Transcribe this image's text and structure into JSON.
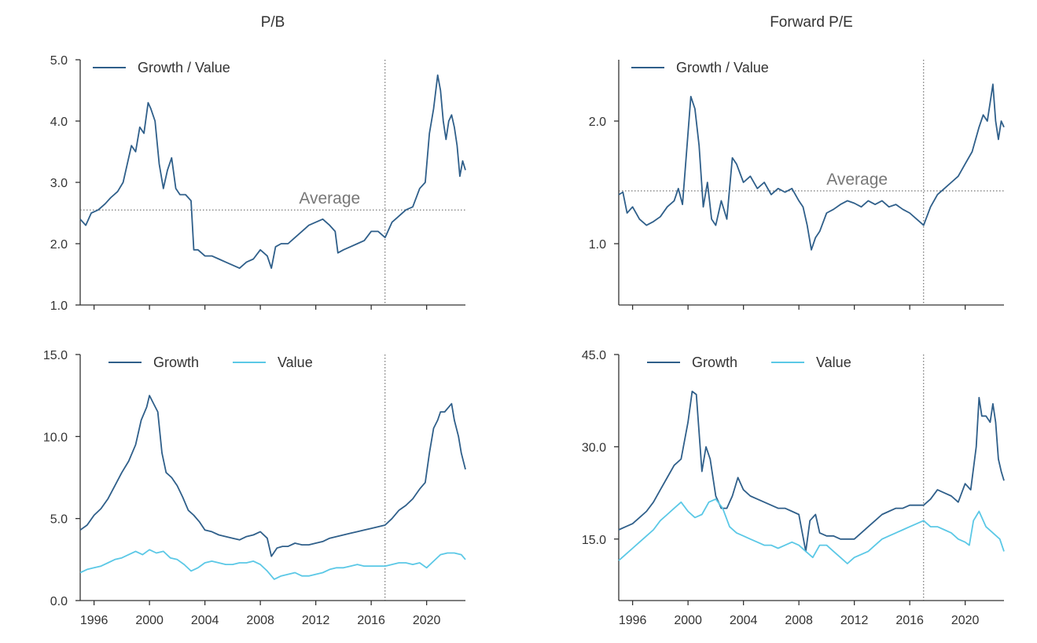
{
  "colors": {
    "growth": "#2f5f8a",
    "value": "#5bc8e6",
    "axis": "#333333",
    "reference": "#555555"
  },
  "chart_data": [
    {
      "id": "pb-ratio",
      "type": "line",
      "title": "P/B",
      "xlim": [
        1995.0,
        2022.8
      ],
      "ylim": [
        1.0,
        5.0
      ],
      "xticks": [
        1996,
        2000,
        2004,
        2008,
        2012,
        2016,
        2020
      ],
      "xtick_labels": [
        "",
        "",
        "",
        "",
        "",
        "",
        ""
      ],
      "yticks": [
        1.0,
        2.0,
        3.0,
        4.0,
        5.0
      ],
      "ytick_labels": [
        "1.0",
        "2.0",
        "3.0",
        "4.0",
        "5.0"
      ],
      "vline_x": 2017.0,
      "average": {
        "value": 2.55,
        "label": "Average",
        "label_x": 2013.0
      },
      "legend": "top-left",
      "series": [
        {
          "name": "Growth / Value",
          "color": "#2f5f8a",
          "x": [
            1995.0,
            1995.4,
            1995.8,
            1996.3,
            1996.8,
            1997.2,
            1997.7,
            1998.1,
            1998.4,
            1998.7,
            1999.0,
            1999.3,
            1999.6,
            1999.9,
            2000.1,
            2000.4,
            2000.7,
            2001.0,
            2001.3,
            2001.6,
            2001.9,
            2002.2,
            2002.6,
            2003.0,
            2003.2,
            2003.5,
            2004.0,
            2004.5,
            2005.0,
            2005.5,
            2006.0,
            2006.5,
            2007.0,
            2007.5,
            2008.0,
            2008.5,
            2008.8,
            2009.1,
            2009.5,
            2010.0,
            2010.5,
            2011.0,
            2011.5,
            2012.0,
            2012.5,
            2013.0,
            2013.4,
            2013.6,
            2014.0,
            2014.5,
            2015.0,
            2015.5,
            2016.0,
            2016.5,
            2017.0,
            2017.5,
            2018.0,
            2018.5,
            2019.0,
            2019.5,
            2019.9,
            2020.2,
            2020.5,
            2020.8,
            2021.0,
            2021.2,
            2021.4,
            2021.6,
            2021.8,
            2022.0,
            2022.2,
            2022.4,
            2022.6,
            2022.8
          ],
          "y": [
            2.4,
            2.3,
            2.5,
            2.55,
            2.65,
            2.75,
            2.85,
            3.0,
            3.3,
            3.6,
            3.5,
            3.9,
            3.8,
            4.3,
            4.2,
            4.0,
            3.3,
            2.9,
            3.2,
            3.4,
            2.9,
            2.8,
            2.8,
            2.7,
            1.9,
            1.9,
            1.8,
            1.8,
            1.75,
            1.7,
            1.65,
            1.6,
            1.7,
            1.75,
            1.9,
            1.8,
            1.6,
            1.95,
            2.0,
            2.0,
            2.1,
            2.2,
            2.3,
            2.35,
            2.4,
            2.3,
            2.2,
            1.85,
            1.9,
            1.95,
            2.0,
            2.05,
            2.2,
            2.2,
            2.1,
            2.35,
            2.45,
            2.55,
            2.6,
            2.9,
            3.0,
            3.8,
            4.2,
            4.75,
            4.5,
            4.0,
            3.7,
            4.0,
            4.1,
            3.9,
            3.6,
            3.1,
            3.35,
            3.2
          ]
        }
      ]
    },
    {
      "id": "forward-pe-ratio",
      "type": "line",
      "title": "Forward P/E",
      "xlim": [
        1995.0,
        2022.8
      ],
      "ylim": [
        0.5,
        2.5
      ],
      "xticks": [
        1996,
        2000,
        2004,
        2008,
        2012,
        2016,
        2020
      ],
      "xtick_labels": [
        "",
        "",
        "",
        "",
        "",
        "",
        ""
      ],
      "yticks": [
        1.0,
        2.0
      ],
      "ytick_labels": [
        "1.0",
        "2.0"
      ],
      "vline_x": 2017.0,
      "average": {
        "value": 1.43,
        "label": "Average",
        "label_x": 2012.2
      },
      "legend": "top-left",
      "series": [
        {
          "name": "Growth / Value",
          "color": "#2f5f8a",
          "x": [
            1995.0,
            1995.3,
            1995.6,
            1996.0,
            1996.5,
            1997.0,
            1997.5,
            1998.0,
            1998.5,
            1999.0,
            1999.3,
            1999.6,
            2000.0,
            2000.2,
            2000.5,
            2000.8,
            2001.1,
            2001.4,
            2001.7,
            2002.0,
            2002.4,
            2002.8,
            2003.2,
            2003.5,
            2004.0,
            2004.5,
            2005.0,
            2005.5,
            2006.0,
            2006.5,
            2007.0,
            2007.5,
            2008.0,
            2008.3,
            2008.6,
            2008.9,
            2009.2,
            2009.5,
            2010.0,
            2010.5,
            2011.0,
            2011.5,
            2012.0,
            2012.5,
            2013.0,
            2013.5,
            2014.0,
            2014.5,
            2015.0,
            2015.5,
            2016.0,
            2016.5,
            2017.0,
            2017.5,
            2018.0,
            2018.5,
            2019.0,
            2019.5,
            2020.0,
            2020.5,
            2021.0,
            2021.3,
            2021.6,
            2021.8,
            2022.0,
            2022.2,
            2022.4,
            2022.6,
            2022.8
          ],
          "y": [
            1.4,
            1.42,
            1.25,
            1.3,
            1.2,
            1.15,
            1.18,
            1.22,
            1.3,
            1.35,
            1.45,
            1.32,
            1.9,
            2.2,
            2.1,
            1.8,
            1.3,
            1.5,
            1.2,
            1.15,
            1.35,
            1.2,
            1.7,
            1.65,
            1.5,
            1.55,
            1.45,
            1.5,
            1.4,
            1.45,
            1.42,
            1.45,
            1.35,
            1.3,
            1.15,
            0.95,
            1.05,
            1.1,
            1.25,
            1.28,
            1.32,
            1.35,
            1.33,
            1.3,
            1.35,
            1.32,
            1.35,
            1.3,
            1.32,
            1.28,
            1.25,
            1.2,
            1.15,
            1.3,
            1.4,
            1.45,
            1.5,
            1.55,
            1.65,
            1.75,
            1.95,
            2.05,
            2.0,
            2.15,
            2.3,
            2.0,
            1.85,
            2.0,
            1.95
          ]
        }
      ]
    },
    {
      "id": "pb-levels",
      "type": "line",
      "title": "",
      "xlim": [
        1995.0,
        2022.8
      ],
      "ylim": [
        0.0,
        15.0
      ],
      "xticks": [
        1996,
        2000,
        2004,
        2008,
        2012,
        2016,
        2020
      ],
      "xtick_labels": [
        "1996",
        "2000",
        "2004",
        "2008",
        "2012",
        "2016",
        "2020"
      ],
      "yticks": [
        0.0,
        5.0,
        10.0,
        15.0
      ],
      "ytick_labels": [
        "0.0",
        "5.0",
        "10.0",
        "15.0"
      ],
      "vline_x": 2017.0,
      "legend": "top-left",
      "series": [
        {
          "name": "Growth",
          "color": "#2f5f8a",
          "x": [
            1995.0,
            1995.5,
            1996.0,
            1996.5,
            1997.0,
            1997.5,
            1998.0,
            1998.5,
            1999.0,
            1999.4,
            1999.8,
            2000.0,
            2000.3,
            2000.6,
            2000.9,
            2001.2,
            2001.6,
            2002.0,
            2002.4,
            2002.8,
            2003.2,
            2003.6,
            2004.0,
            2004.5,
            2005.0,
            2005.5,
            2006.0,
            2006.5,
            2007.0,
            2007.5,
            2008.0,
            2008.5,
            2008.8,
            2009.2,
            2009.6,
            2010.0,
            2010.5,
            2011.0,
            2011.5,
            2012.0,
            2012.5,
            2013.0,
            2013.5,
            2014.0,
            2014.5,
            2015.0,
            2015.5,
            2016.0,
            2016.5,
            2017.0,
            2017.5,
            2018.0,
            2018.5,
            2019.0,
            2019.5,
            2019.9,
            2020.2,
            2020.5,
            2020.8,
            2021.0,
            2021.3,
            2021.6,
            2021.8,
            2022.0,
            2022.3,
            2022.5,
            2022.8
          ],
          "y": [
            4.3,
            4.6,
            5.2,
            5.6,
            6.2,
            7.0,
            7.8,
            8.5,
            9.5,
            11.0,
            11.8,
            12.5,
            12.0,
            11.5,
            9.0,
            7.8,
            7.5,
            7.0,
            6.3,
            5.5,
            5.2,
            4.8,
            4.3,
            4.2,
            4.0,
            3.9,
            3.8,
            3.7,
            3.9,
            4.0,
            4.2,
            3.8,
            2.7,
            3.2,
            3.3,
            3.3,
            3.5,
            3.4,
            3.4,
            3.5,
            3.6,
            3.8,
            3.9,
            4.0,
            4.1,
            4.2,
            4.3,
            4.4,
            4.5,
            4.6,
            5.0,
            5.5,
            5.8,
            6.2,
            6.8,
            7.2,
            9.0,
            10.5,
            11.0,
            11.5,
            11.5,
            11.8,
            12.0,
            11.0,
            10.0,
            9.0,
            8.0
          ]
        },
        {
          "name": "Value",
          "color": "#5bc8e6",
          "x": [
            1995.0,
            1995.5,
            1996.0,
            1996.5,
            1997.0,
            1997.5,
            1998.0,
            1998.5,
            1999.0,
            1999.5,
            2000.0,
            2000.5,
            2001.0,
            2001.5,
            2002.0,
            2002.5,
            2003.0,
            2003.5,
            2004.0,
            2004.5,
            2005.0,
            2005.5,
            2006.0,
            2006.5,
            2007.0,
            2007.5,
            2008.0,
            2008.5,
            2009.0,
            2009.5,
            2010.0,
            2010.5,
            2011.0,
            2011.5,
            2012.0,
            2012.5,
            2013.0,
            2013.5,
            2014.0,
            2014.5,
            2015.0,
            2015.5,
            2016.0,
            2016.5,
            2017.0,
            2017.5,
            2018.0,
            2018.5,
            2019.0,
            2019.5,
            2020.0,
            2020.5,
            2021.0,
            2021.5,
            2022.0,
            2022.5,
            2022.8
          ],
          "y": [
            1.7,
            1.9,
            2.0,
            2.1,
            2.3,
            2.5,
            2.6,
            2.8,
            3.0,
            2.8,
            3.1,
            2.9,
            3.0,
            2.6,
            2.5,
            2.2,
            1.8,
            2.0,
            2.3,
            2.4,
            2.3,
            2.2,
            2.2,
            2.3,
            2.3,
            2.4,
            2.2,
            1.8,
            1.3,
            1.5,
            1.6,
            1.7,
            1.5,
            1.5,
            1.6,
            1.7,
            1.9,
            2.0,
            2.0,
            2.1,
            2.2,
            2.1,
            2.1,
            2.1,
            2.1,
            2.2,
            2.3,
            2.3,
            2.2,
            2.3,
            2.0,
            2.4,
            2.8,
            2.9,
            2.9,
            2.8,
            2.5
          ]
        }
      ]
    },
    {
      "id": "forward-pe-levels",
      "type": "line",
      "title": "",
      "xlim": [
        1995.0,
        2022.8
      ],
      "ylim": [
        5.0,
        45.0
      ],
      "xticks": [
        1996,
        2000,
        2004,
        2008,
        2012,
        2016,
        2020
      ],
      "xtick_labels": [
        "1996",
        "2000",
        "2004",
        "2008",
        "2012",
        "2016",
        "2020"
      ],
      "yticks": [
        15.0,
        30.0,
        45.0
      ],
      "ytick_labels": [
        "15.0",
        "30.0",
        "45.0"
      ],
      "vline_x": 2017.0,
      "legend": "top-left",
      "series": [
        {
          "name": "Growth",
          "color": "#2f5f8a",
          "x": [
            1995.0,
            1995.5,
            1996.0,
            1996.5,
            1997.0,
            1997.5,
            1998.0,
            1998.5,
            1999.0,
            1999.5,
            2000.0,
            2000.3,
            2000.6,
            2001.0,
            2001.3,
            2001.6,
            2002.0,
            2002.4,
            2002.8,
            2003.2,
            2003.6,
            2004.0,
            2004.5,
            2005.0,
            2005.5,
            2006.0,
            2006.5,
            2007.0,
            2007.5,
            2008.0,
            2008.5,
            2008.8,
            2009.2,
            2009.5,
            2010.0,
            2010.5,
            2011.0,
            2011.5,
            2012.0,
            2012.5,
            2013.0,
            2013.5,
            2014.0,
            2014.5,
            2015.0,
            2015.5,
            2016.0,
            2016.5,
            2017.0,
            2017.5,
            2018.0,
            2018.5,
            2019.0,
            2019.5,
            2020.0,
            2020.4,
            2020.8,
            2021.0,
            2021.2,
            2021.5,
            2021.8,
            2022.0,
            2022.2,
            2022.4,
            2022.6,
            2022.8
          ],
          "y": [
            16.5,
            17.0,
            17.5,
            18.5,
            19.5,
            21.0,
            23.0,
            25.0,
            27.0,
            28.0,
            34.0,
            39.0,
            38.5,
            26.0,
            30.0,
            28.0,
            22.0,
            20.0,
            20.0,
            22.0,
            25.0,
            23.0,
            22.0,
            21.5,
            21.0,
            20.5,
            20.0,
            20.0,
            19.5,
            19.0,
            13.0,
            18.0,
            19.0,
            16.0,
            15.5,
            15.5,
            15.0,
            15.0,
            15.0,
            16.0,
            17.0,
            18.0,
            19.0,
            19.5,
            20.0,
            20.0,
            20.5,
            20.5,
            20.5,
            21.5,
            23.0,
            22.5,
            22.0,
            21.0,
            24.0,
            23.0,
            30.0,
            38.0,
            35.0,
            35.0,
            34.0,
            37.0,
            34.0,
            28.0,
            26.0,
            24.5
          ]
        },
        {
          "name": "Value",
          "color": "#5bc8e6",
          "x": [
            1995.0,
            1995.5,
            1996.0,
            1996.5,
            1997.0,
            1997.5,
            1998.0,
            1998.5,
            1999.0,
            1999.5,
            2000.0,
            2000.5,
            2001.0,
            2001.5,
            2002.0,
            2002.5,
            2003.0,
            2003.5,
            2004.0,
            2004.5,
            2005.0,
            2005.5,
            2006.0,
            2006.5,
            2007.0,
            2007.5,
            2008.0,
            2008.5,
            2009.0,
            2009.5,
            2010.0,
            2010.5,
            2011.0,
            2011.5,
            2012.0,
            2012.5,
            2013.0,
            2013.5,
            2014.0,
            2014.5,
            2015.0,
            2015.5,
            2016.0,
            2016.5,
            2017.0,
            2017.5,
            2018.0,
            2018.5,
            2019.0,
            2019.5,
            2020.0,
            2020.3,
            2020.6,
            2021.0,
            2021.5,
            2022.0,
            2022.5,
            2022.8
          ],
          "y": [
            11.5,
            12.5,
            13.5,
            14.5,
            15.5,
            16.5,
            18.0,
            19.0,
            20.0,
            21.0,
            19.5,
            18.5,
            19.0,
            21.0,
            21.5,
            20.0,
            17.0,
            16.0,
            15.5,
            15.0,
            14.5,
            14.0,
            14.0,
            13.5,
            14.0,
            14.5,
            14.0,
            13.0,
            12.0,
            14.0,
            14.0,
            13.0,
            12.0,
            11.0,
            12.0,
            12.5,
            13.0,
            14.0,
            15.0,
            15.5,
            16.0,
            16.5,
            17.0,
            17.5,
            18.0,
            17.0,
            17.0,
            16.5,
            16.0,
            15.0,
            14.5,
            14.0,
            18.0,
            19.5,
            17.0,
            16.0,
            15.0,
            13.0
          ]
        }
      ]
    }
  ]
}
